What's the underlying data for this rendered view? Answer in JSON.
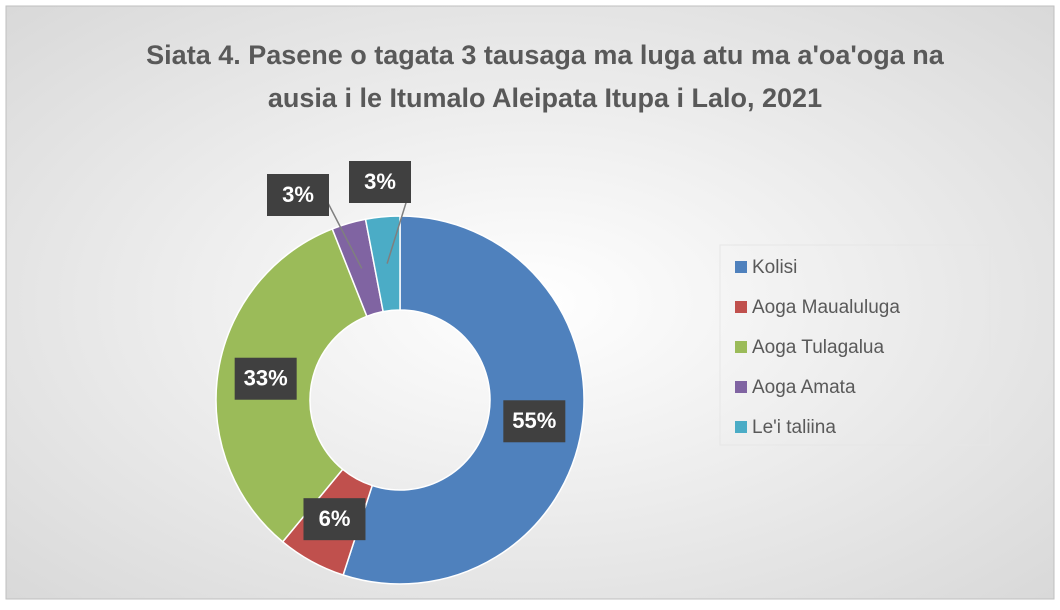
{
  "chart_data": {
    "type": "donut",
    "title": [
      "Siata 4. Pasene o tagata 3 tausaga ma luga atu ma a'oa'oga na",
      "ausia i le Itumalo Aleipata Itupa i Lalo, 2021"
    ],
    "categories": [
      "Kolisi",
      "Aoga Maualuluga",
      "Aoga Tulagalua",
      "Aoga Amata",
      "Le'i taliina"
    ],
    "values": [
      55,
      6,
      33,
      3,
      3
    ],
    "value_labels": [
      "55%",
      "6%",
      "33%",
      "3%",
      "3%"
    ],
    "colors": [
      "#4f81bd",
      "#c0504d",
      "#9bbb59",
      "#8064a2",
      "#4bacc6"
    ],
    "legend": "right"
  }
}
